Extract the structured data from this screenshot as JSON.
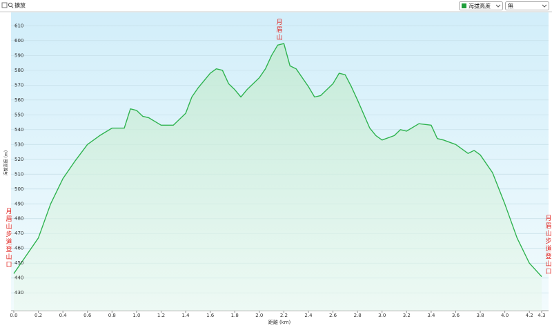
{
  "toolbar": {
    "zoom_label": "擴放",
    "series_select": "海拔高度",
    "mode_select": "無"
  },
  "chart_data": {
    "type": "line",
    "ylabel": "海拔高度 (m)",
    "xlabel": "距離 (km)",
    "annotations": [
      "月眉山",
      "月眉山步道登山口",
      "月眉山步道登山口"
    ],
    "xlim": [
      0,
      4.3
    ],
    "ylim": [
      418,
      619
    ],
    "xticks": [
      {
        "value": 0,
        "label": "0.0"
      },
      0.2,
      0.4,
      0.6,
      0.8,
      {
        "value": 1,
        "label": "1.0"
      },
      1.2,
      1.4,
      1.6,
      1.8,
      {
        "value": 2,
        "label": "2.0"
      },
      2.2,
      2.4,
      2.6,
      2.8,
      {
        "value": 3,
        "label": "3.0"
      },
      3.2,
      3.4,
      3.6,
      3.8,
      {
        "value": 4,
        "label": "4.0"
      },
      4.2,
      4.3
    ],
    "yticks": [
      430,
      440,
      450,
      460,
      470,
      480,
      490,
      500,
      510,
      520,
      530,
      540,
      550,
      560,
      570,
      580,
      590,
      600,
      610
    ],
    "grid": true,
    "series": [
      {
        "name": "海拔高度",
        "color": "#2fb34f",
        "x": [
          0,
          0.1,
          0.2,
          0.3,
          0.4,
          0.5,
          0.6,
          0.7,
          0.8,
          0.9,
          0.95,
          1.0,
          1.05,
          1.1,
          1.2,
          1.3,
          1.4,
          1.45,
          1.5,
          1.6,
          1.65,
          1.7,
          1.75,
          1.8,
          1.85,
          1.9,
          2.0,
          2.05,
          2.1,
          2.15,
          2.2,
          2.25,
          2.3,
          2.4,
          2.45,
          2.5,
          2.6,
          2.65,
          2.7,
          2.75,
          2.8,
          2.9,
          2.95,
          3.0,
          3.1,
          3.15,
          3.2,
          3.3,
          3.4,
          3.45,
          3.5,
          3.6,
          3.7,
          3.75,
          3.8,
          3.9,
          4.0,
          4.1,
          4.2,
          4.3
        ],
        "values": [
          443,
          455,
          467,
          490,
          507,
          519,
          530,
          536,
          541,
          541,
          554,
          553,
          549,
          548,
          543,
          543,
          551,
          562,
          568,
          578,
          581,
          580,
          571,
          567,
          562,
          567,
          575,
          581,
          590,
          597,
          598,
          583,
          581,
          569,
          562,
          563,
          571,
          578,
          577,
          569,
          560,
          541,
          536,
          533,
          536,
          540,
          539,
          544,
          543,
          534,
          533,
          530,
          524,
          526,
          523,
          511,
          490,
          467,
          450,
          441
        ]
      }
    ]
  }
}
